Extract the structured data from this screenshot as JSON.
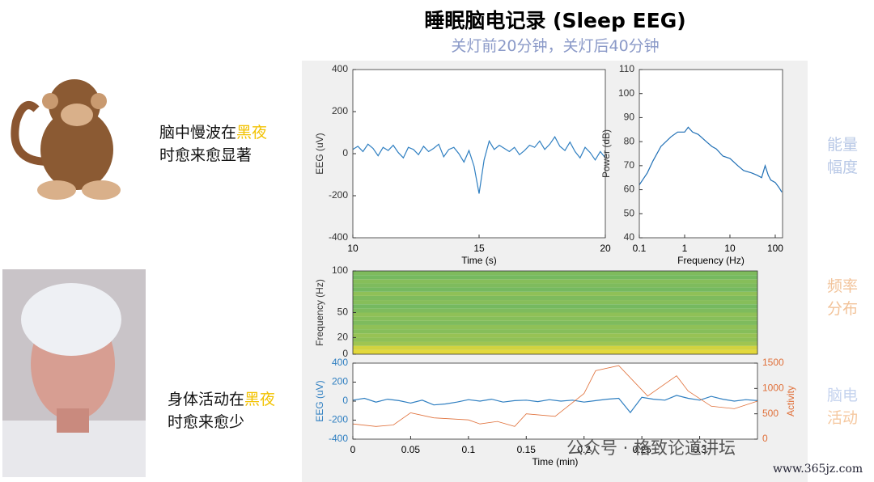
{
  "title": "睡眠脑电记录 (Sleep EEG)",
  "subtitle": "关灯前20分钟，关灯后40分钟",
  "captions": [
    {
      "before": "脑中慢波在",
      "highlight": "黑夜",
      "after": "时愈来愈显著"
    },
    {
      "before": "身体活动在",
      "highlight": "黑夜",
      "after": "时愈来愈少"
    }
  ],
  "side_labels": [
    [
      "能量",
      "幅度"
    ],
    [
      "频率",
      "分布"
    ],
    [
      "脑电",
      "活动"
    ]
  ],
  "watermark": "公众号 · 格致论道讲坛",
  "site": "www.365jz.com",
  "chart_data": [
    {
      "type": "line",
      "xlabel": "Time (s)",
      "ylabel": "EEG (uV)",
      "xlim": [
        10,
        20
      ],
      "xticks": [
        10,
        15,
        20
      ],
      "ylim": [
        -400,
        400
      ],
      "yticks": [
        -400,
        -200,
        0,
        200,
        400
      ],
      "series": [
        {
          "color": "#2f7fc1",
          "x": [
            10,
            10.2,
            10.4,
            10.6,
            10.8,
            11,
            11.2,
            11.4,
            11.6,
            11.8,
            12,
            12.2,
            12.4,
            12.6,
            12.8,
            13,
            13.2,
            13.4,
            13.6,
            13.8,
            14,
            14.2,
            14.4,
            14.6,
            14.8,
            15,
            15.2,
            15.4,
            15.6,
            15.8,
            16,
            16.2,
            16.4,
            16.6,
            16.8,
            17,
            17.2,
            17.4,
            17.6,
            17.8,
            18,
            18.2,
            18.4,
            18.6,
            18.8,
            19,
            19.2,
            19.4,
            19.6,
            19.8,
            20
          ],
          "values": [
            20,
            35,
            10,
            45,
            25,
            -10,
            30,
            15,
            40,
            5,
            -20,
            30,
            20,
            -5,
            35,
            10,
            25,
            45,
            -15,
            20,
            30,
            0,
            -40,
            15,
            -60,
            -190,
            -30,
            60,
            20,
            40,
            25,
            10,
            30,
            -5,
            15,
            40,
            30,
            60,
            20,
            45,
            80,
            35,
            15,
            55,
            10,
            -20,
            30,
            5,
            -30,
            10,
            -20
          ]
        }
      ]
    },
    {
      "type": "line",
      "xscale": "log",
      "xlabel": "Frequency (Hz)",
      "ylabel": "Power (dB)",
      "xlim": [
        0.1,
        145
      ],
      "xticks": [
        0.1,
        1,
        10,
        100
      ],
      "ylim": [
        40,
        110
      ],
      "yticks": [
        40,
        50,
        60,
        70,
        80,
        90,
        100,
        110
      ],
      "series": [
        {
          "color": "#1f6fb5",
          "x": [
            0.1,
            0.15,
            0.2,
            0.3,
            0.5,
            0.7,
            1,
            1.2,
            1.5,
            2,
            3,
            4,
            5,
            7,
            10,
            15,
            20,
            30,
            40,
            50,
            60,
            70,
            80,
            100,
            120,
            140
          ],
          "values": [
            62,
            67,
            72,
            78,
            82,
            84,
            84,
            86,
            84,
            83,
            80,
            78,
            77,
            74,
            73,
            70,
            68,
            67,
            66,
            65,
            70,
            66,
            64,
            63,
            61,
            59
          ]
        }
      ]
    },
    {
      "type": "heatmap",
      "ylabel": "Frequency (Hz)",
      "xlim": [
        0,
        0.35
      ],
      "ylim": [
        0,
        100
      ],
      "yticks": [
        0,
        20,
        50,
        100
      ],
      "colormap": [
        "#3aa874",
        "#e3d83a"
      ],
      "y": [
        0,
        5,
        10,
        15,
        20,
        25,
        30,
        35,
        40,
        45,
        50,
        55,
        60,
        65,
        70,
        75,
        80,
        85,
        90,
        95,
        100
      ],
      "values": [
        1,
        0.9,
        0.6,
        0.5,
        0.55,
        0.45,
        0.5,
        0.4,
        0.45,
        0.5,
        0.4,
        0.35,
        0.45,
        0.4,
        0.5,
        0.35,
        0.4,
        0.45,
        0.35,
        0.4
      ]
    },
    {
      "type": "line",
      "xlabel": "Time (min)",
      "ylabel": "EEG (uV)",
      "y2label": "Activity",
      "xlim": [
        0,
        0.35
      ],
      "xticks": [
        0,
        0.05,
        0.1,
        0.15,
        0.2,
        0.25,
        0.3
      ],
      "ylim": [
        -400,
        400
      ],
      "yticks": [
        -400,
        -200,
        0,
        200,
        400
      ],
      "y2lim": [
        0,
        1500
      ],
      "y2ticks": [
        0,
        500,
        1000,
        1500
      ],
      "series": [
        {
          "color": "#2f7fc1",
          "x": [
            0,
            0.01,
            0.02,
            0.03,
            0.04,
            0.05,
            0.06,
            0.07,
            0.08,
            0.09,
            0.1,
            0.11,
            0.12,
            0.13,
            0.14,
            0.15,
            0.16,
            0.17,
            0.18,
            0.19,
            0.2,
            0.21,
            0.22,
            0.23,
            0.24,
            0.25,
            0.26,
            0.27,
            0.28,
            0.29,
            0.3,
            0.31,
            0.32,
            0.33,
            0.34,
            0.35
          ],
          "values": [
            10,
            30,
            -10,
            20,
            5,
            -20,
            10,
            -40,
            -30,
            -10,
            15,
            0,
            20,
            -10,
            5,
            10,
            -5,
            15,
            0,
            10,
            -10,
            5,
            20,
            30,
            -120,
            40,
            20,
            10,
            60,
            30,
            10,
            50,
            20,
            0,
            15,
            5
          ]
        },
        {
          "color": "#e0703a",
          "axis": "y2",
          "x": [
            0,
            0.02,
            0.035,
            0.05,
            0.07,
            0.1,
            0.11,
            0.125,
            0.14,
            0.15,
            0.175,
            0.2,
            0.21,
            0.23,
            0.255,
            0.28,
            0.29,
            0.31,
            0.33,
            0.35
          ],
          "values": [
            300,
            250,
            280,
            520,
            420,
            380,
            300,
            350,
            250,
            500,
            450,
            900,
            1350,
            1450,
            850,
            1250,
            950,
            650,
            600,
            750
          ]
        }
      ]
    }
  ]
}
